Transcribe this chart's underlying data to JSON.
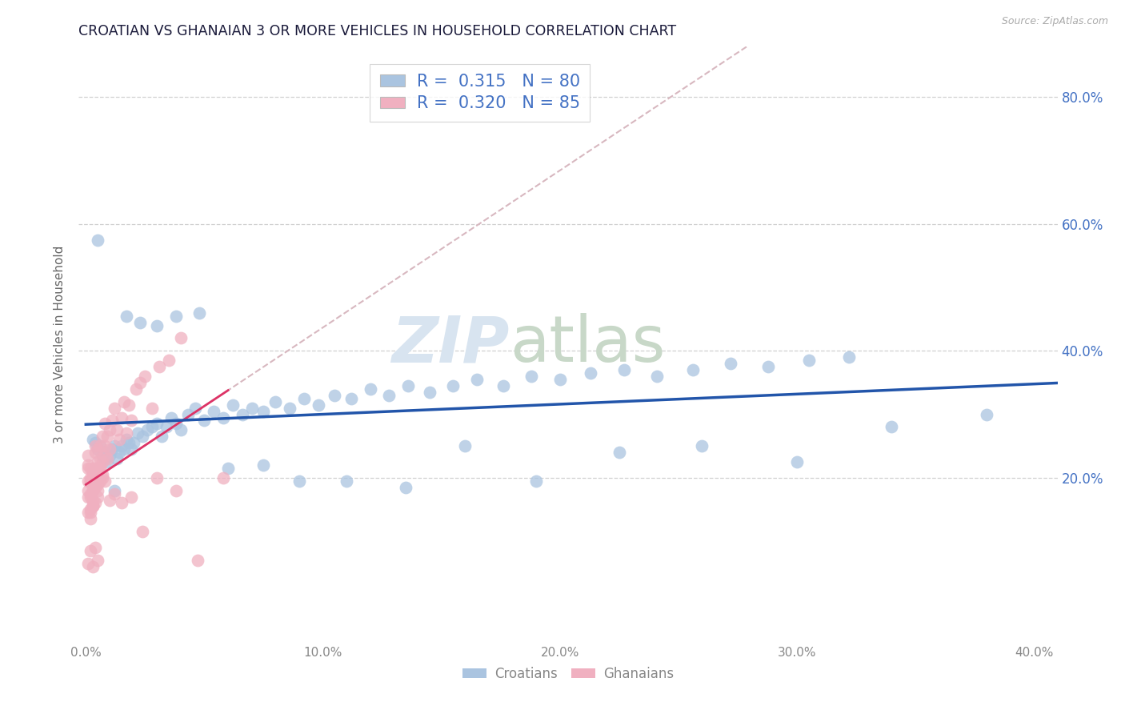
{
  "title": "CROATIAN VS GHANAIAN 3 OR MORE VEHICLES IN HOUSEHOLD CORRELATION CHART",
  "source": "Source: ZipAtlas.com",
  "ylabel": "3 or more Vehicles in Household",
  "legend_croatians": "Croatians",
  "legend_ghanaians": "Ghanaians",
  "croatian_R": 0.315,
  "croatian_N": 80,
  "ghanaian_R": 0.32,
  "ghanaian_N": 85,
  "xlim": [
    -0.003,
    0.41
  ],
  "ylim": [
    -0.06,
    0.88
  ],
  "ytick_positions": [
    0.2,
    0.4,
    0.6,
    0.8
  ],
  "ytick_labels": [
    "20.0%",
    "40.0%",
    "60.0%",
    "80.0%"
  ],
  "xtick_vals": [
    0.0,
    0.05,
    0.1,
    0.15,
    0.2,
    0.25,
    0.3,
    0.35,
    0.4
  ],
  "xtick_labels": [
    "0.0%",
    "",
    "10.0%",
    "",
    "20.0%",
    "",
    "30.0%",
    "",
    "40.0%"
  ],
  "grid_color": "#d0d0d0",
  "blue_color": "#aac4e0",
  "pink_color": "#f0b0c0",
  "line_blue_color": "#2255aa",
  "line_pink_color": "#dd3366",
  "dash_color": "#d8b8c0",
  "watermark_color": "#d8e4f0",
  "bg_color": "#ffffff",
  "title_color": "#1a1a3a",
  "axis_color": "#666666",
  "tick_color": "#888888",
  "right_tick_color": "#4472c4",
  "legend_text_color": "#4472c4",
  "blue_x": [
    0.003,
    0.004,
    0.005,
    0.006,
    0.007,
    0.008,
    0.009,
    0.01,
    0.011,
    0.012,
    0.013,
    0.014,
    0.015,
    0.016,
    0.017,
    0.018,
    0.019,
    0.02,
    0.022,
    0.024,
    0.026,
    0.028,
    0.03,
    0.032,
    0.034,
    0.036,
    0.038,
    0.04,
    0.043,
    0.046,
    0.05,
    0.054,
    0.058,
    0.062,
    0.066,
    0.07,
    0.075,
    0.08,
    0.086,
    0.092,
    0.098,
    0.105,
    0.112,
    0.12,
    0.128,
    0.136,
    0.145,
    0.155,
    0.165,
    0.176,
    0.188,
    0.2,
    0.213,
    0.227,
    0.241,
    0.256,
    0.272,
    0.288,
    0.305,
    0.322,
    0.005,
    0.008,
    0.012,
    0.017,
    0.023,
    0.03,
    0.038,
    0.048,
    0.06,
    0.075,
    0.09,
    0.11,
    0.135,
    0.16,
    0.19,
    0.225,
    0.26,
    0.3,
    0.34,
    0.38
  ],
  "blue_y": [
    0.26,
    0.255,
    0.245,
    0.25,
    0.235,
    0.24,
    0.225,
    0.235,
    0.245,
    0.25,
    0.23,
    0.24,
    0.25,
    0.245,
    0.26,
    0.255,
    0.245,
    0.255,
    0.27,
    0.265,
    0.275,
    0.28,
    0.285,
    0.265,
    0.28,
    0.295,
    0.285,
    0.275,
    0.3,
    0.31,
    0.29,
    0.305,
    0.295,
    0.315,
    0.3,
    0.31,
    0.305,
    0.32,
    0.31,
    0.325,
    0.315,
    0.33,
    0.325,
    0.34,
    0.33,
    0.345,
    0.335,
    0.345,
    0.355,
    0.345,
    0.36,
    0.355,
    0.365,
    0.37,
    0.36,
    0.37,
    0.38,
    0.375,
    0.385,
    0.39,
    0.575,
    0.23,
    0.18,
    0.455,
    0.445,
    0.44,
    0.455,
    0.46,
    0.215,
    0.22,
    0.195,
    0.195,
    0.185,
    0.25,
    0.195,
    0.24,
    0.25,
    0.225,
    0.28,
    0.3
  ],
  "pink_x": [
    0.001,
    0.001,
    0.001,
    0.001,
    0.001,
    0.002,
    0.002,
    0.002,
    0.002,
    0.002,
    0.002,
    0.002,
    0.003,
    0.003,
    0.003,
    0.003,
    0.003,
    0.003,
    0.004,
    0.004,
    0.004,
    0.004,
    0.004,
    0.004,
    0.005,
    0.005,
    0.005,
    0.005,
    0.005,
    0.005,
    0.006,
    0.006,
    0.006,
    0.006,
    0.007,
    0.007,
    0.007,
    0.008,
    0.008,
    0.008,
    0.009,
    0.009,
    0.01,
    0.01,
    0.011,
    0.012,
    0.013,
    0.014,
    0.015,
    0.016,
    0.017,
    0.018,
    0.019,
    0.021,
    0.023,
    0.025,
    0.028,
    0.031,
    0.035,
    0.04,
    0.001,
    0.001,
    0.002,
    0.002,
    0.003,
    0.003,
    0.004,
    0.005,
    0.006,
    0.007,
    0.008,
    0.01,
    0.012,
    0.015,
    0.019,
    0.024,
    0.03,
    0.038,
    0.047,
    0.058,
    0.001,
    0.002,
    0.003,
    0.004,
    0.005
  ],
  "pink_y": [
    0.22,
    0.17,
    0.195,
    0.145,
    0.18,
    0.145,
    0.17,
    0.195,
    0.15,
    0.175,
    0.2,
    0.135,
    0.155,
    0.18,
    0.155,
    0.185,
    0.21,
    0.165,
    0.185,
    0.21,
    0.16,
    0.19,
    0.215,
    0.25,
    0.2,
    0.225,
    0.18,
    0.215,
    0.245,
    0.17,
    0.215,
    0.195,
    0.25,
    0.23,
    0.225,
    0.265,
    0.205,
    0.25,
    0.285,
    0.235,
    0.265,
    0.23,
    0.275,
    0.245,
    0.29,
    0.31,
    0.275,
    0.26,
    0.295,
    0.32,
    0.27,
    0.315,
    0.29,
    0.34,
    0.35,
    0.36,
    0.31,
    0.375,
    0.385,
    0.42,
    0.235,
    0.215,
    0.195,
    0.215,
    0.155,
    0.205,
    0.24,
    0.19,
    0.215,
    0.2,
    0.195,
    0.165,
    0.175,
    0.16,
    0.17,
    0.115,
    0.2,
    0.18,
    0.07,
    0.2,
    0.065,
    0.085,
    0.06,
    0.09,
    0.07
  ]
}
